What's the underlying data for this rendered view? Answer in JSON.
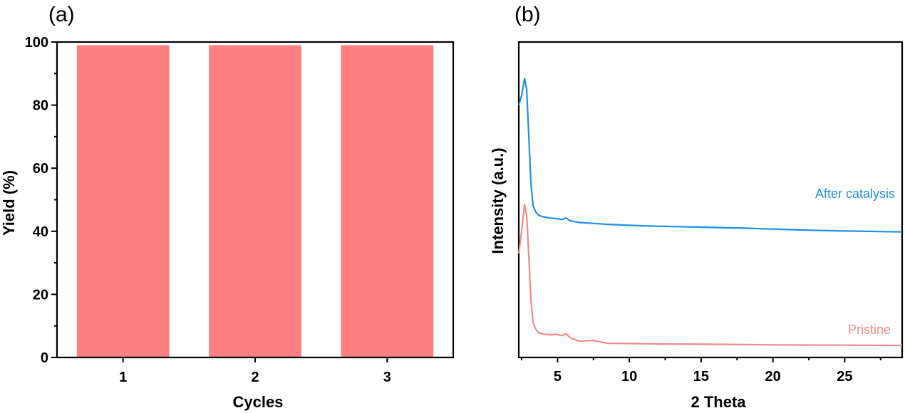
{
  "chart_data": [
    {
      "type": "bar",
      "panel_label": "(a)",
      "categories": [
        "1",
        "2",
        "3"
      ],
      "values": [
        99,
        99,
        99
      ],
      "bar_color": "#ff8080",
      "xlabel": "Cycles",
      "ylabel": "Yield (%)",
      "ylim": [
        0,
        100
      ],
      "yticks": [
        0,
        20,
        40,
        60,
        80,
        100
      ],
      "grid": false
    },
    {
      "type": "line",
      "panel_label": "(b)",
      "xlabel": "2 Theta",
      "ylabel": "Intensity (a.u.)",
      "xlim": [
        2.3,
        29
      ],
      "xticks": [
        5,
        10,
        15,
        20,
        25
      ],
      "ylim": [
        0,
        100
      ],
      "y_ticks_shown": false,
      "grid": false,
      "series": [
        {
          "name": "After catalysis",
          "color": "#1f8fe8",
          "x": [
            2.3,
            2.5,
            2.7,
            2.85,
            3.0,
            3.15,
            3.3,
            3.5,
            3.7,
            4.0,
            4.5,
            5.0,
            5.3,
            5.6,
            5.9,
            6.5,
            7.5,
            8.5,
            10,
            12,
            15,
            18,
            20,
            22,
            25,
            29
          ],
          "y": [
            80,
            83,
            88.5,
            85,
            70,
            55,
            48,
            46,
            45,
            44.6,
            44.2,
            44.0,
            43.7,
            44.2,
            43.3,
            42.8,
            42.5,
            42.2,
            41.9,
            41.6,
            41.3,
            41.0,
            40.7,
            40.4,
            40.1,
            39.8
          ]
        },
        {
          "name": "Pristine",
          "color": "#f08a8a",
          "x": [
            2.3,
            2.5,
            2.7,
            2.85,
            3.0,
            3.15,
            3.3,
            3.5,
            3.7,
            4.0,
            4.5,
            5.0,
            5.3,
            5.6,
            5.9,
            6.5,
            7.5,
            8.5,
            10,
            12,
            15,
            18,
            20,
            22,
            25,
            29
          ],
          "y": [
            33,
            40,
            48.5,
            45,
            32,
            18,
            11,
            8.8,
            7.8,
            7.4,
            7.2,
            7.3,
            6.9,
            7.6,
            6.2,
            5.2,
            5.4,
            4.5,
            4.4,
            4.3,
            4.2,
            4.1,
            4.0,
            3.95,
            3.9,
            3.8
          ]
        }
      ]
    }
  ]
}
